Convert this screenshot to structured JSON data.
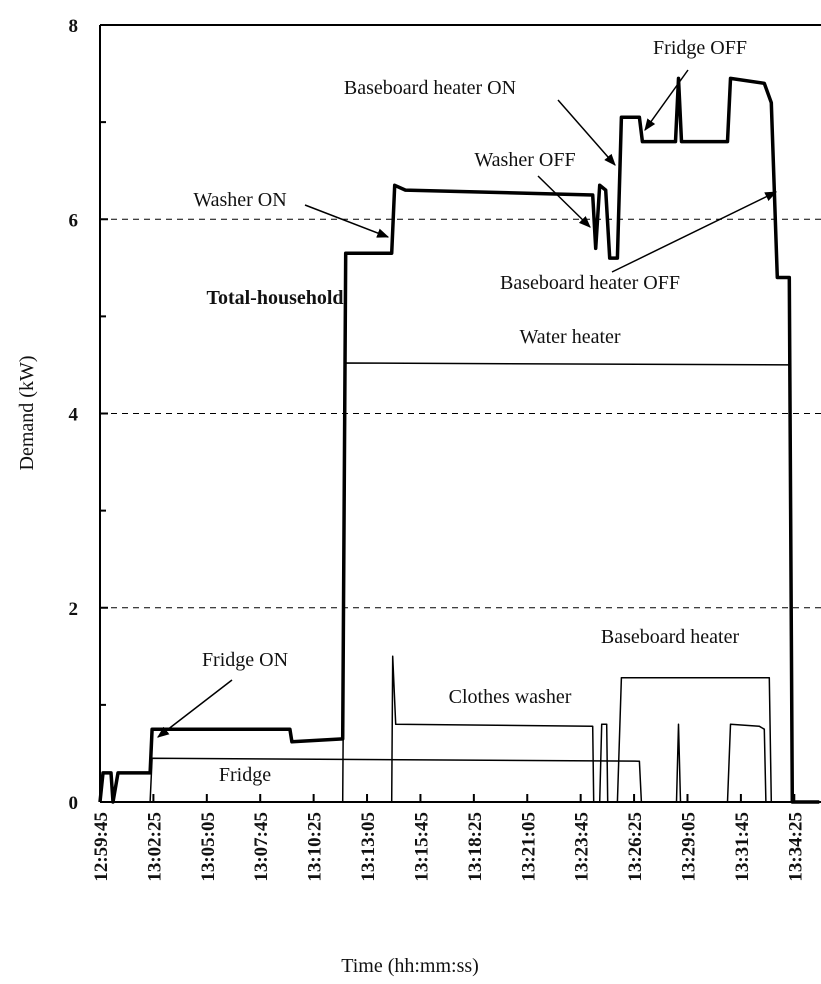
{
  "chart_data": {
    "type": "line",
    "x_label": "Time (hh:mm:ss)",
    "y_label": "Demand (kW)",
    "xlim": [
      "12:59:45",
      "13:35:45"
    ],
    "xticks": [
      "12:59:45",
      "13:02:25",
      "13:05:05",
      "13:07:45",
      "13:10:25",
      "13:13:05",
      "13:15:45",
      "13:18:25",
      "13:21:05",
      "13:23:45",
      "13:26:25",
      "13:29:05",
      "13:31:45",
      "13:34:25"
    ],
    "ylim": [
      0,
      8
    ],
    "yticks": [
      0,
      2,
      4,
      6,
      8
    ],
    "yminor_ticks": [
      1,
      3,
      5,
      7
    ],
    "grid": true,
    "series": [
      {
        "name": "Total-household",
        "color": "#000000",
        "x": [
          "12:59:45",
          "12:59:54",
          "13:00:18",
          "13:00:24",
          "13:00:39",
          "13:02:15",
          "13:02:21",
          "13:09:14",
          "13:09:20",
          "13:11:52",
          "13:12:01",
          "13:14:19",
          "13:14:28",
          "13:15:00",
          "13:24:21",
          "13:24:30",
          "13:24:42",
          "13:25:00",
          "13:25:12",
          "13:25:35",
          "13:25:47",
          "13:26:41",
          "13:26:50",
          "13:28:29",
          "13:28:38",
          "13:28:47",
          "13:31:05",
          "13:31:14",
          "13:32:55",
          "13:33:16",
          "13:33:34",
          "13:34:10",
          "13:34:19",
          "13:35:40"
        ],
        "values": [
          0,
          0.3,
          0.3,
          0,
          0.3,
          0.3,
          0.75,
          0.75,
          0.62,
          0.65,
          5.65,
          5.65,
          6.35,
          6.3,
          6.25,
          5.7,
          6.35,
          6.3,
          5.6,
          5.6,
          7.05,
          7.05,
          6.8,
          6.8,
          7.45,
          6.8,
          6.8,
          7.45,
          7.4,
          7.2,
          5.4,
          5.4,
          0,
          0
        ]
      },
      {
        "name": "Water heater",
        "color": "#000000",
        "x": [
          "13:11:52",
          "13:12:01",
          "13:34:10",
          "13:34:19"
        ],
        "values": [
          0,
          4.52,
          4.5,
          0
        ]
      },
      {
        "name": "Baseboard heater",
        "color": "#000000",
        "x": [
          "13:25:35",
          "13:25:47",
          "13:33:10",
          "13:33:16"
        ],
        "values": [
          0,
          1.28,
          1.28,
          0
        ]
      },
      {
        "name": "Clothes washer",
        "color": "#000000",
        "x": [
          "13:14:19",
          "13:14:22",
          "13:14:31",
          "13:24:21",
          "13:24:24",
          "13:24:42",
          "13:24:48",
          "13:25:03",
          "13:25:06",
          "13:28:32",
          "13:28:38",
          "13:28:44",
          "13:31:05",
          "13:31:14",
          "13:32:40",
          "13:32:55",
          "13:33:00"
        ],
        "values": [
          0,
          1.5,
          0.8,
          0.78,
          0,
          0,
          0.8,
          0.8,
          0,
          0,
          0.8,
          0,
          0,
          0.8,
          0.78,
          0.75,
          0
        ]
      },
      {
        "name": "Fridge",
        "color": "#000000",
        "x": [
          "13:02:15",
          "13:02:21",
          "13:26:41",
          "13:26:47"
        ],
        "values": [
          0,
          0.45,
          0.42,
          0
        ]
      }
    ],
    "annotations": [
      "Washer ON",
      "Fridge ON",
      "Baseboard heater ON",
      "Washer OFF",
      "Fridge OFF",
      "Baseboard heater OFF"
    ]
  }
}
